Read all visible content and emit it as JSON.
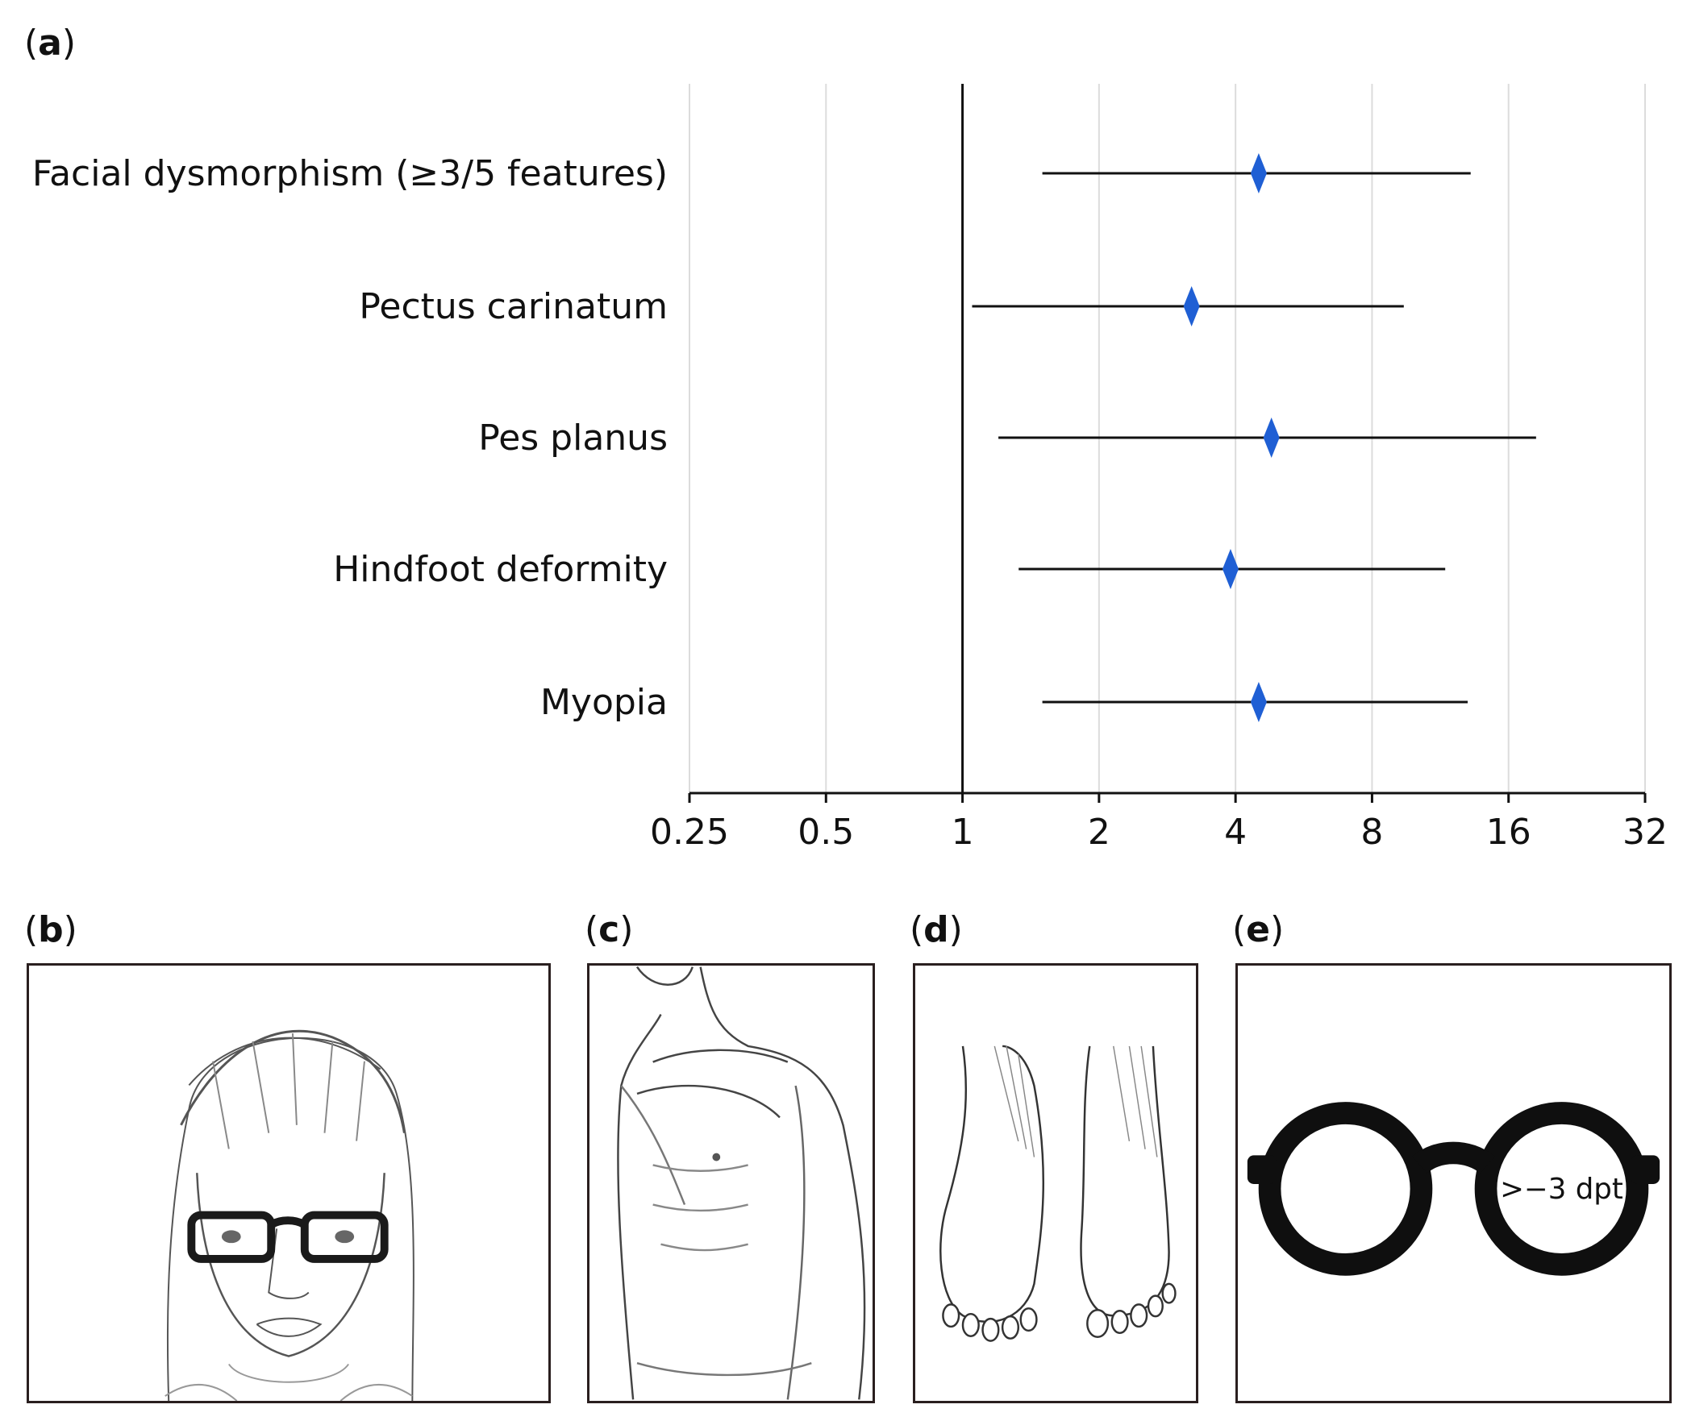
{
  "panels": {
    "a": {
      "open": "(",
      "letter": "a",
      "close": ")"
    },
    "b": {
      "open": "(",
      "letter": "b",
      "close": ")"
    },
    "c": {
      "open": "(",
      "letter": "c",
      "close": ")"
    },
    "d": {
      "open": "(",
      "letter": "d",
      "close": ")"
    },
    "e": {
      "open": "(",
      "letter": "e",
      "close": ")"
    }
  },
  "chart_data": {
    "type": "forest",
    "x_scale": "log2",
    "xlim": [
      0.25,
      32
    ],
    "xticks": [
      "0.25",
      "0.5",
      "1",
      "2",
      "4",
      "8",
      "16",
      "32"
    ],
    "xtick_values": [
      0.25,
      0.5,
      1,
      2,
      4,
      8,
      16,
      32
    ],
    "reference_line": 1,
    "grid": true,
    "marker_color": "#1f5fd4",
    "rows": [
      {
        "label": "Facial dysmorphism (≥3/5 features)",
        "estimate": 4.5,
        "ci_low": 1.5,
        "ci_high": 13.2
      },
      {
        "label": "Pectus carinatum",
        "estimate": 3.2,
        "ci_low": 1.05,
        "ci_high": 9.4
      },
      {
        "label": "Pes planus",
        "estimate": 4.8,
        "ci_low": 1.2,
        "ci_high": 18.4
      },
      {
        "label": "Hindfoot deformity",
        "estimate": 3.9,
        "ci_low": 1.33,
        "ci_high": 11.6
      },
      {
        "label": "Myopia",
        "estimate": 4.5,
        "ci_low": 1.5,
        "ci_high": 13.0
      }
    ]
  },
  "illustrations": {
    "b": "face-with-glasses-sketch",
    "c": "pectus-carinatum-torso-sketch",
    "d": "flat-feet-sketch",
    "e": {
      "icon": "round-glasses-icon",
      "lens_text": ">−3 dpt"
    }
  }
}
